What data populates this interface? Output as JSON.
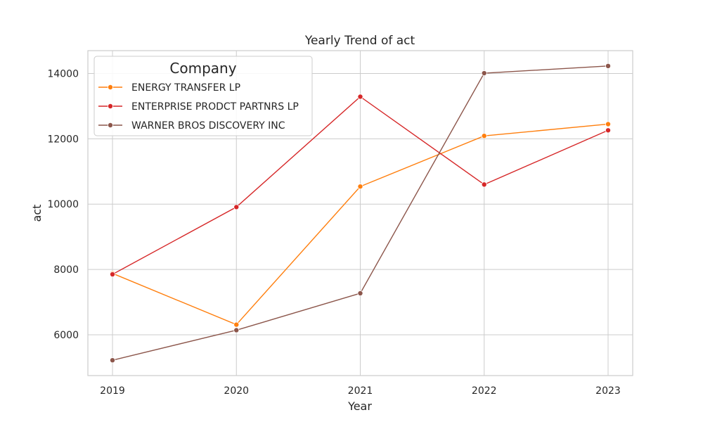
{
  "chart_data": {
    "type": "line",
    "title": "Yearly Trend of act",
    "xlabel": "Year",
    "ylabel": "act",
    "x": [
      "2019",
      "2020",
      "2021",
      "2022",
      "2023"
    ],
    "yticks": [
      "6000",
      "8000",
      "10000",
      "12000",
      "14000"
    ],
    "ylim": [
      4750,
      14700
    ],
    "grid": true,
    "legend": {
      "title": "Company",
      "position": "top-left"
    },
    "series": [
      {
        "name": "ENERGY TRANSFER LP",
        "color": "#ff7f0e",
        "values": [
          7880,
          6310,
          10540,
          12090,
          12450
        ]
      },
      {
        "name": "ENTERPRISE PRODCT PARTNRS LP",
        "color": "#d62728",
        "values": [
          7850,
          9910,
          13290,
          10600,
          12260
        ]
      },
      {
        "name": "WARNER BROS DISCOVERY INC",
        "color": "#8c564b",
        "values": [
          5220,
          6140,
          7270,
          14010,
          14230
        ]
      }
    ]
  }
}
